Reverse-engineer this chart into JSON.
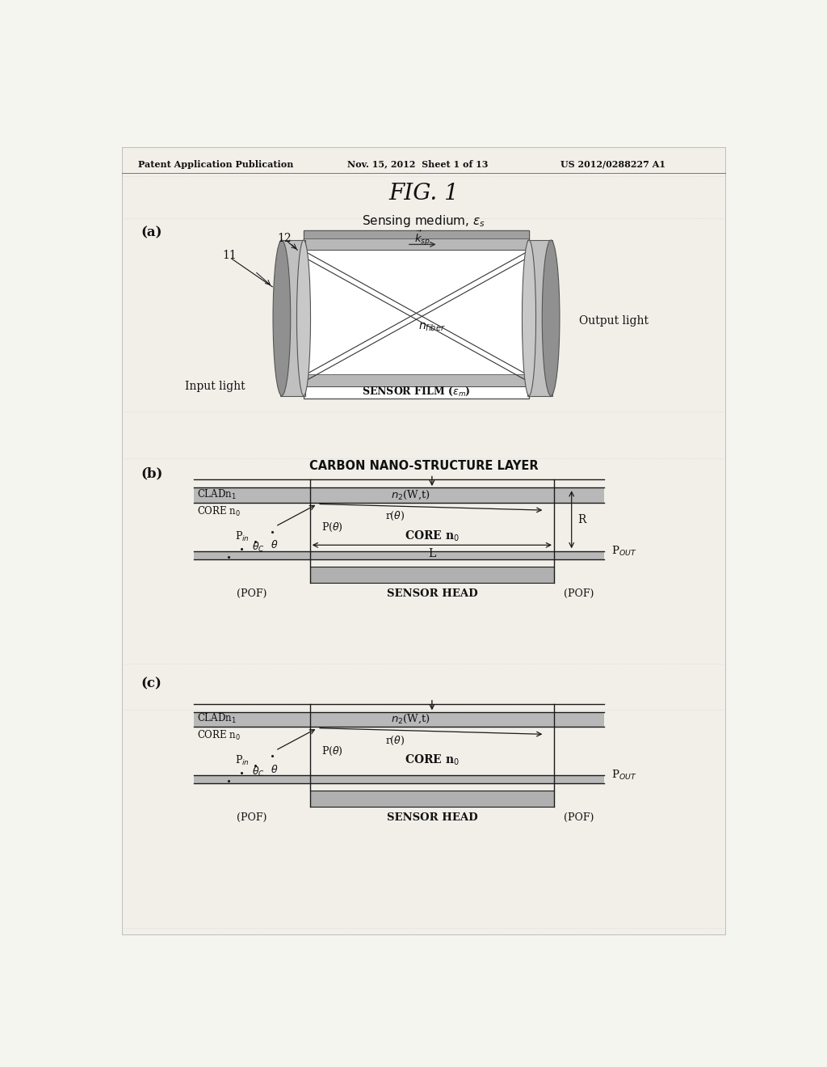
{
  "header_left": "Patent Application Publication",
  "header_mid": "Nov. 15, 2012  Sheet 1 of 13",
  "header_right": "US 2012/0288227 A1",
  "title": "FIG. 1",
  "bg_color": "#f5f5f0",
  "panel_bg": "#f0ede8",
  "gray_clad": "#b8b8b8",
  "gray_sensor": "#b0b0b0",
  "gray_bottom": "#b8b8b8",
  "line_color": "#1a1a1a",
  "text_color": "#111111"
}
